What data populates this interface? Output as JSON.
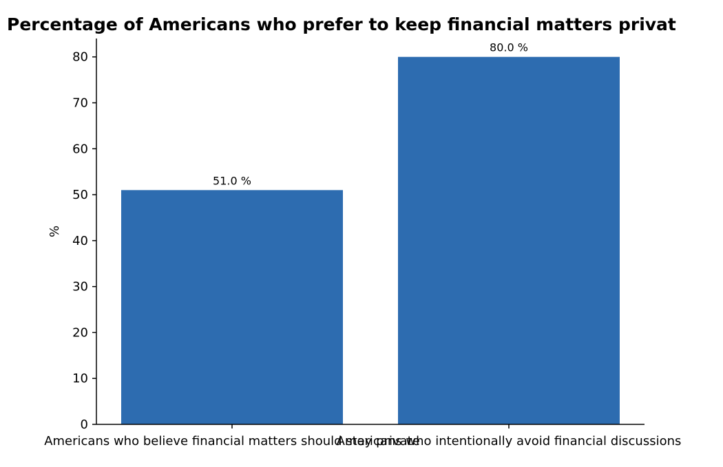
{
  "chart_data": {
    "type": "bar",
    "title": "Percentage of Americans who prefer to keep financial matters privat",
    "xlabel": "",
    "ylabel": "%",
    "categories": [
      "Americans who believe financial matters should stay private",
      "Americans who intentionally avoid financial discussions"
    ],
    "values": [
      51.0,
      80.0
    ],
    "value_labels": [
      "51.0 %",
      "80.0 %"
    ],
    "ylim": [
      0,
      84
    ],
    "yticks": [
      0,
      10,
      20,
      30,
      40,
      50,
      60,
      70,
      80
    ],
    "grid": false,
    "legend": "none",
    "colors": {
      "bar": "#2d6cb0",
      "axis": "#000000"
    }
  }
}
